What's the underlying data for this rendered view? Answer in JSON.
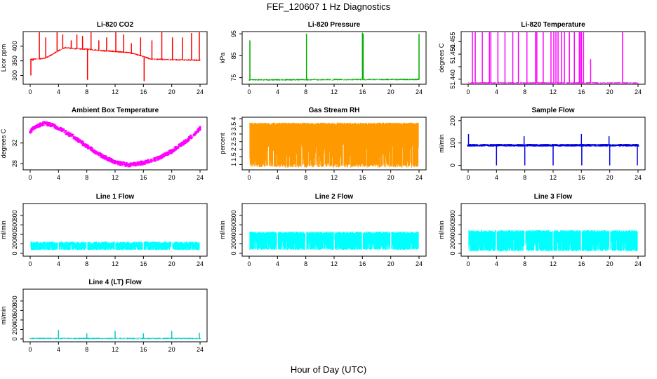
{
  "figure": {
    "title": "FEF_120607  1 Hz Diagnostics",
    "xlabel": "Hour of Day (UTC)"
  },
  "chart_data": [
    {
      "id": "co2",
      "type": "line",
      "title": "Li-820 CO2",
      "ylabel": "Licor ppm",
      "color": "#ff0000",
      "xlim": [
        0,
        24
      ],
      "ylim": [
        270,
        450
      ],
      "xticks": [
        0,
        4,
        8,
        12,
        16,
        20,
        24
      ],
      "yticks": [
        300,
        350,
        400
      ],
      "baseline": [
        [
          0,
          355
        ],
        [
          2,
          358
        ],
        [
          3,
          370
        ],
        [
          4,
          385
        ],
        [
          5,
          395
        ],
        [
          6,
          392
        ],
        [
          8,
          390
        ],
        [
          10,
          385
        ],
        [
          12,
          382
        ],
        [
          14,
          378
        ],
        [
          16,
          365
        ],
        [
          17,
          356
        ],
        [
          20,
          354
        ],
        [
          24,
          352
        ]
      ],
      "spikes": [
        [
          0.1,
          300
        ],
        [
          0.4,
          350
        ],
        [
          1.3,
          450
        ],
        [
          2.2,
          430
        ],
        [
          3.8,
          450
        ],
        [
          4.6,
          440
        ],
        [
          5.8,
          420
        ],
        [
          6.6,
          440
        ],
        [
          7.4,
          435
        ],
        [
          8.1,
          285
        ],
        [
          8.6,
          455
        ],
        [
          9.7,
          420
        ],
        [
          10.8,
          430
        ],
        [
          12.1,
          455
        ],
        [
          13.2,
          440
        ],
        [
          14.3,
          410
        ],
        [
          15.6,
          430
        ],
        [
          16.1,
          280
        ],
        [
          17.2,
          420
        ],
        [
          18.6,
          450
        ],
        [
          20.1,
          430
        ],
        [
          21.5,
          430
        ],
        [
          22.8,
          445
        ],
        [
          23.9,
          455
        ]
      ]
    },
    {
      "id": "pressure",
      "type": "line",
      "title": "Li-820 Pressure",
      "ylabel": "kPa",
      "color": "#00aa00",
      "xlim": [
        0,
        24
      ],
      "ylim": [
        72,
        96
      ],
      "xticks": [
        0,
        4,
        8,
        12,
        16,
        20,
        24
      ],
      "yticks": [
        75,
        85,
        95
      ],
      "baseline": [
        [
          0,
          74
        ],
        [
          24,
          74.2
        ]
      ],
      "spikes": [
        [
          0.1,
          92
        ],
        [
          8.1,
          95
        ],
        [
          16.0,
          95.5
        ],
        [
          16.1,
          95
        ],
        [
          24.0,
          95
        ]
      ]
    },
    {
      "id": "temperature",
      "type": "line",
      "title": "Li-820 Temperature",
      "ylabel": "degrees C",
      "color": "#ff00ff",
      "xlim": [
        0,
        24
      ],
      "ylim": [
        51.438,
        51.459
      ],
      "xticks": [
        0,
        4,
        8,
        12,
        16,
        20,
        24
      ],
      "yticks": [
        51.44,
        51.445,
        51.45,
        51.455
      ],
      "yticklabels": [
        "51.440",
        "",
        "51.450",
        "51.455"
      ],
      "baseline": [
        [
          0,
          51.4385
        ],
        [
          24,
          51.4385
        ]
      ],
      "spikes": [
        [
          0.6,
          51.459
        ],
        [
          1.0,
          51.459
        ],
        [
          2.0,
          51.459
        ],
        [
          3.0,
          51.459
        ],
        [
          3.2,
          51.459
        ],
        [
          4.2,
          51.459
        ],
        [
          5.2,
          51.459
        ],
        [
          6.3,
          51.459
        ],
        [
          7.1,
          51.459
        ],
        [
          8.3,
          51.459
        ],
        [
          9.5,
          51.459
        ],
        [
          9.7,
          51.459
        ],
        [
          10.6,
          51.459
        ],
        [
          11.7,
          51.459
        ],
        [
          12.1,
          51.459
        ],
        [
          12.4,
          51.459
        ],
        [
          12.7,
          51.459
        ],
        [
          13.2,
          51.459
        ],
        [
          13.6,
          51.459
        ],
        [
          14.3,
          51.459
        ],
        [
          15.0,
          51.459
        ],
        [
          15.7,
          51.459
        ],
        [
          15.9,
          51.459
        ],
        [
          16.0,
          51.459
        ],
        [
          16.3,
          51.459
        ],
        [
          17.3,
          51.448
        ],
        [
          21.8,
          51.459
        ]
      ]
    },
    {
      "id": "box_temp",
      "type": "line",
      "title": "Ambient Box Temperature",
      "ylabel": "degrees C",
      "color": "#ff00ff",
      "xlim": [
        0,
        24
      ],
      "ylim": [
        26.8,
        37
      ],
      "xticks": [
        0,
        4,
        8,
        12,
        16,
        20,
        24
      ],
      "yticks": [
        28,
        32
      ],
      "baseline": [
        [
          0,
          34.3
        ],
        [
          1,
          35.3
        ],
        [
          2,
          35.8
        ],
        [
          3,
          35.5
        ],
        [
          4,
          34.9
        ],
        [
          6,
          33.3
        ],
        [
          8,
          31.4
        ],
        [
          10,
          29.6
        ],
        [
          12,
          28.3
        ],
        [
          14,
          27.7
        ],
        [
          16,
          28.2
        ],
        [
          18,
          29.0
        ],
        [
          20,
          30.4
        ],
        [
          22,
          32.3
        ],
        [
          24,
          34.8
        ]
      ],
      "band": 0.5
    },
    {
      "id": "rh",
      "type": "area",
      "title": "Gas Stream RH",
      "ylabel": "percent",
      "color": "#ff9900",
      "xlim": [
        0,
        24
      ],
      "ylim": [
        0.65,
        4.1
      ],
      "xticks": [
        0,
        4,
        8,
        12,
        16,
        20,
        24
      ],
      "yticks": [
        1.0,
        1.5,
        2.0,
        2.5,
        3.0,
        3.5,
        4.0
      ],
      "upper": 3.75,
      "lower": 0.8
    },
    {
      "id": "sample_flow",
      "type": "line",
      "title": "Sample Flow",
      "ylabel": "ml/min",
      "color": "#0000dd",
      "xlim": [
        0,
        24
      ],
      "ylim": [
        -20,
        215
      ],
      "xticks": [
        0,
        4,
        8,
        12,
        16,
        20,
        24
      ],
      "yticks": [
        0,
        100,
        200
      ],
      "baseline": [
        [
          0,
          90
        ],
        [
          24,
          90
        ]
      ],
      "band": 6,
      "spikes": [
        [
          0.05,
          140
        ],
        [
          4.0,
          0
        ],
        [
          7.9,
          130
        ],
        [
          8.0,
          0
        ],
        [
          12.0,
          0
        ],
        [
          16.0,
          140
        ],
        [
          16.05,
          0
        ],
        [
          19.9,
          130
        ],
        [
          20.0,
          0
        ],
        [
          23.9,
          0
        ]
      ]
    },
    {
      "id": "line1",
      "type": "area",
      "title": "Line 1 Flow",
      "ylabel": "ml/min",
      "color": "#00ffff",
      "xlim": [
        0,
        24
      ],
      "ylim": [
        -60,
        1050
      ],
      "xticks": [
        0,
        4,
        8,
        12,
        16,
        20,
        24
      ],
      "yticks": [
        0,
        200,
        400,
        600,
        800
      ],
      "upper": 250,
      "lower": 70,
      "gaps": [
        4,
        8,
        12,
        16,
        20
      ]
    },
    {
      "id": "line2",
      "type": "area",
      "title": "Line 2 Flow",
      "ylabel": "ml/min",
      "color": "#00ffff",
      "xlim": [
        0,
        24
      ],
      "ylim": [
        -60,
        1050
      ],
      "xticks": [
        0,
        4,
        8,
        12,
        16,
        20,
        24
      ],
      "yticks": [
        0,
        200,
        400,
        600,
        800
      ],
      "upper": 460,
      "lower": 70,
      "gaps": [
        4,
        8,
        12,
        16,
        20
      ]
    },
    {
      "id": "line3",
      "type": "area",
      "title": "Line 3 Flow",
      "ylabel": "ml/min",
      "color": "#00ffff",
      "xlim": [
        0,
        24
      ],
      "ylim": [
        -60,
        1050
      ],
      "xticks": [
        0,
        4,
        8,
        12,
        16,
        20,
        24
      ],
      "yticks": [
        0,
        200,
        400,
        600,
        800
      ],
      "upper": 490,
      "lower": 40,
      "gaps": [
        4,
        8,
        12,
        16,
        20
      ]
    },
    {
      "id": "line4",
      "type": "line",
      "title": "Line 4 (LT) Flow",
      "ylabel": "ml/min",
      "color": "#00cccc",
      "xlim": [
        0,
        24
      ],
      "ylim": [
        -60,
        1050
      ],
      "xticks": [
        0,
        4,
        8,
        12,
        16,
        20,
        24
      ],
      "yticks": [
        0,
        200,
        400,
        600,
        800
      ],
      "baseline": [
        [
          0,
          10
        ],
        [
          24,
          10
        ]
      ],
      "spikes": [
        [
          4.0,
          190
        ],
        [
          8.0,
          120
        ],
        [
          12.0,
          170
        ],
        [
          16.0,
          120
        ],
        [
          20.0,
          170
        ],
        [
          23.9,
          130
        ]
      ]
    }
  ]
}
